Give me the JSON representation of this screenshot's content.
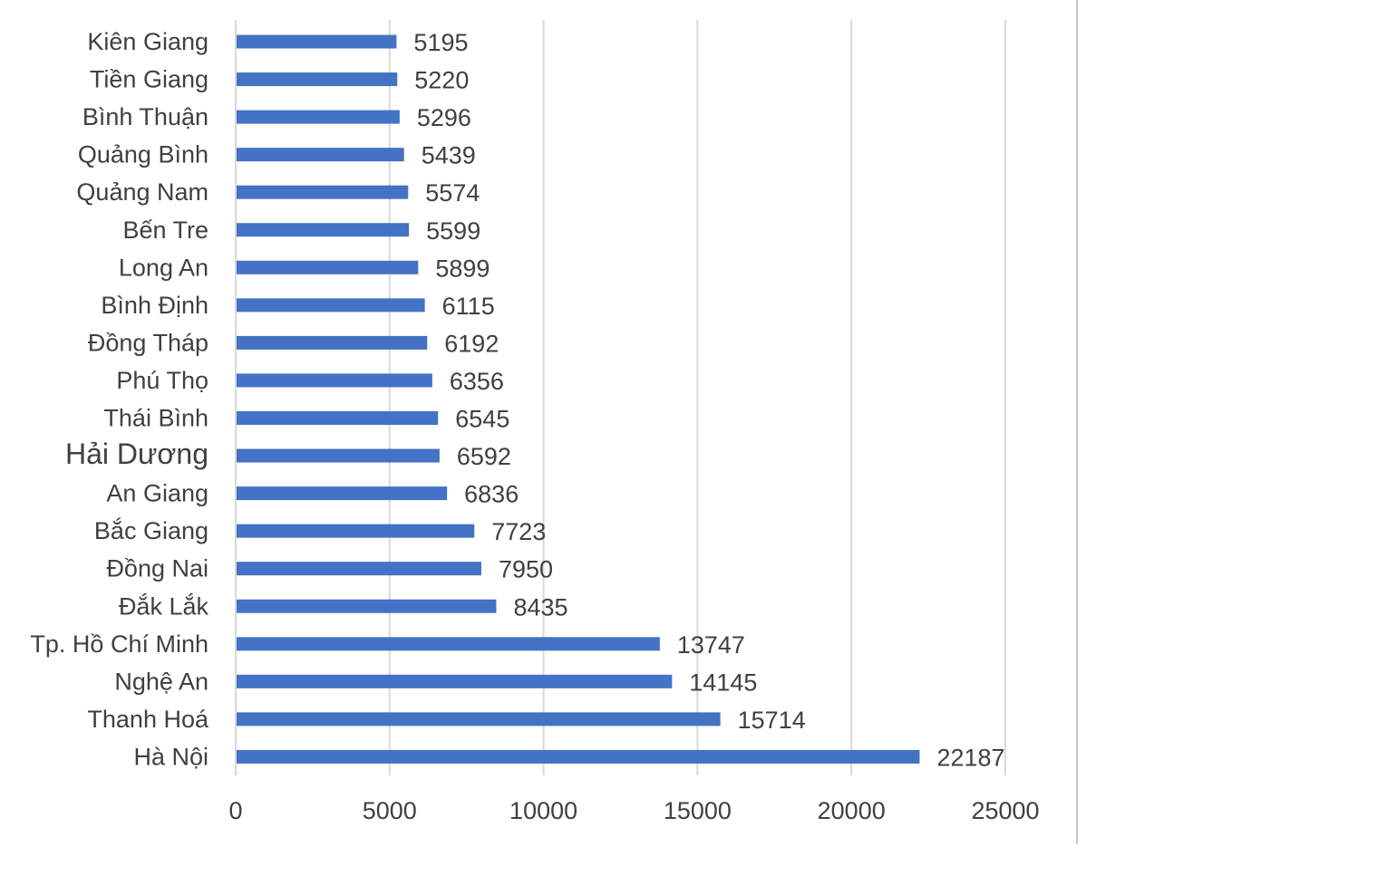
{
  "chart_data": {
    "type": "bar",
    "orientation": "horizontal",
    "categories": [
      "Kiên Giang",
      "Tiền Giang",
      "Bình Thuận",
      "Quảng Bình",
      "Quảng Nam",
      "Bến Tre",
      "Long An",
      "Bình Định",
      "Đồng Tháp",
      "Phú Thọ",
      "Thái Bình",
      "Hải Dương",
      "An Giang",
      "Bắc Giang",
      "Đồng Nai",
      "Đắk Lắk",
      "Tp. Hồ Chí Minh",
      "Nghệ An",
      "Thanh Hoá",
      "Hà Nội"
    ],
    "values": [
      5195,
      5220,
      5296,
      5439,
      5574,
      5599,
      5899,
      6115,
      6192,
      6356,
      6545,
      6592,
      6836,
      7723,
      7950,
      8435,
      13747,
      14145,
      15714,
      22187
    ],
    "xlim": [
      0,
      25000
    ],
    "xticks": [
      "0",
      "5000",
      "10000",
      "15000",
      "20000",
      "25000"
    ],
    "grid": "vertical",
    "data_labels": true,
    "title": "",
    "xlabel": "",
    "ylabel": "",
    "colors": {
      "bar": "#4472c4",
      "text": "#404040",
      "grid": "#d9d9d9"
    }
  }
}
